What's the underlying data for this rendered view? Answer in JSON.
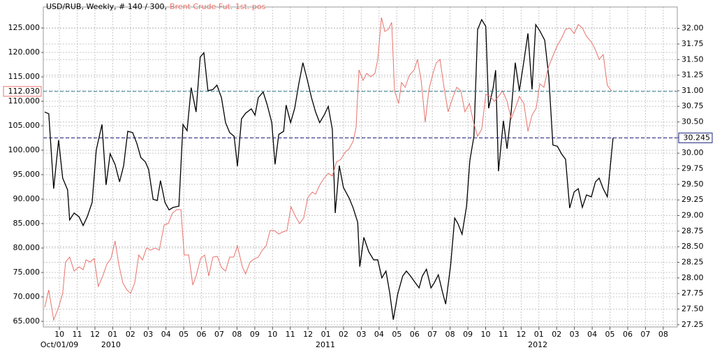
{
  "chart_data": {
    "type": "line",
    "subtitle": ", Weekly, # 140 / 300,",
    "xlim": [
      -0.34,
      154.6
    ],
    "xticks": [
      {
        "value": 3.6,
        "label": "10"
      },
      {
        "value": 7.94,
        "label": "11"
      },
      {
        "value": 12.28,
        "label": "12"
      },
      {
        "value": 16.62,
        "label": "01"
      },
      {
        "value": 20.96,
        "label": "02"
      },
      {
        "value": 25.3,
        "label": "03"
      },
      {
        "value": 29.64,
        "label": "04"
      },
      {
        "value": 33.98,
        "label": "05"
      },
      {
        "value": 38.32,
        "label": "06"
      },
      {
        "value": 42.66,
        "label": "07"
      },
      {
        "value": 47.0,
        "label": "08"
      },
      {
        "value": 51.34,
        "label": "09"
      },
      {
        "value": 55.68,
        "label": "10"
      },
      {
        "value": 60.02,
        "label": "11"
      },
      {
        "value": 64.36,
        "label": "12"
      },
      {
        "value": 68.7,
        "label": "01"
      },
      {
        "value": 73.04,
        "label": "02"
      },
      {
        "value": 77.38,
        "label": "03"
      },
      {
        "value": 81.72,
        "label": "04"
      },
      {
        "value": 86.06,
        "label": "05"
      },
      {
        "value": 90.4,
        "label": "06"
      },
      {
        "value": 94.74,
        "label": "07"
      },
      {
        "value": 99.08,
        "label": "08"
      },
      {
        "value": 103.42,
        "label": "09"
      },
      {
        "value": 107.76,
        "label": "10"
      },
      {
        "value": 112.1,
        "label": "11"
      },
      {
        "value": 116.44,
        "label": "12"
      },
      {
        "value": 120.78,
        "label": "01"
      },
      {
        "value": 125.12,
        "label": "02"
      },
      {
        "value": 129.46,
        "label": "03"
      },
      {
        "value": 133.8,
        "label": "04"
      },
      {
        "value": 138.14,
        "label": "05"
      },
      {
        "value": 142.48,
        "label": "06"
      },
      {
        "value": 146.82,
        "label": "07"
      },
      {
        "value": 151.16,
        "label": "08"
      }
    ],
    "xticks_secondary": [
      {
        "value": 3.6,
        "label": "Oct/01/09"
      },
      {
        "value": 16.2,
        "label": "2010"
      },
      {
        "value": 68.6,
        "label": "2011"
      },
      {
        "value": 120.5,
        "label": "2012"
      }
    ],
    "ylim": [
      63.86,
      129.29
    ],
    "yticks": [
      {
        "value": 65,
        "label": "65.000"
      },
      {
        "value": 70,
        "label": "70.000"
      },
      {
        "value": 75,
        "label": "75.000"
      },
      {
        "value": 80,
        "label": "80.000"
      },
      {
        "value": 85,
        "label": "85.000"
      },
      {
        "value": 90,
        "label": "90.000"
      },
      {
        "value": 95,
        "label": "95.000"
      },
      {
        "value": 100,
        "label": "100.000"
      },
      {
        "value": 105,
        "label": "105.000"
      },
      {
        "value": 110,
        "label": "110.000"
      },
      {
        "value": 115,
        "label": "115.000"
      },
      {
        "value": 120,
        "label": "120.000"
      },
      {
        "value": 125,
        "label": "125.000"
      }
    ],
    "y2lim": [
      27.214,
      32.343
    ],
    "y2ticks": [
      27.25,
      {
        "value": 27.5,
        "label": "27.50"
      },
      27.75,
      {
        "value": 28,
        "label": "28.00"
      },
      28.25,
      {
        "value": 28.5,
        "label": "28.50"
      },
      28.75,
      {
        "value": 29,
        "label": "29.00"
      },
      29.25,
      {
        "value": 29.5,
        "label": "29.50"
      },
      29.75,
      {
        "value": 30,
        "label": "30.00"
      },
      30.25,
      {
        "value": 30.5,
        "label": "30.50"
      },
      30.75,
      {
        "value": 31,
        "label": "31.00"
      },
      31.25,
      {
        "value": 31.5,
        "label": "31.50"
      },
      31.75,
      {
        "value": 32,
        "label": "32.00"
      }
    ],
    "grid": true,
    "markers": [
      {
        "value": 112.03,
        "label": "112.030",
        "axis": "y",
        "color": "#2f7f8f"
      },
      {
        "value": 30.245,
        "label": "30.245",
        "axis": "y2",
        "color": "#1a237e"
      }
    ],
    "series": [
      {
        "name": "USD/RUB",
        "color": "#000000",
        "axis": "y2",
        "x": [
          0,
          1.0,
          2.2,
          3.4,
          4.4,
          5.6,
          6.1,
          7.2,
          8.4,
          9.4,
          10.4,
          11.6,
          12.6,
          14.0,
          15.0,
          16.0,
          17.2,
          18.3,
          19.3,
          20.3,
          21.5,
          22.5,
          23.5,
          24.6,
          25.4,
          26.5,
          27.5,
          28.3,
          29.4,
          30.4,
          31.4,
          32.8,
          33.8,
          34.8,
          35.8,
          37.0,
          38.0,
          38.9,
          39.9,
          41.1,
          42.1,
          43.2,
          44.2,
          45.2,
          46.3,
          47.1,
          48.1,
          49.1,
          50.5,
          51.4,
          52.2,
          53.4,
          54.4,
          55.5,
          56.3,
          57.2,
          58.4,
          59.0,
          60.1,
          61.1,
          62.1,
          63.1,
          64.2,
          65.2,
          66.2,
          67.2,
          68.3,
          69.3,
          70.3,
          71.0,
          72.0,
          73.0,
          74.4,
          75.4,
          76.5,
          77.0,
          78.0,
          79.2,
          80.4,
          81.4,
          82.4,
          83.4,
          84.3,
          85.2,
          86.3,
          87.5,
          88.4,
          89.4,
          90.6,
          91.5,
          92.3,
          93.3,
          94.4,
          95.2,
          96.2,
          97.3,
          98.0,
          99.2,
          100.2,
          101.0,
          102.0,
          103.1,
          103.9,
          104.9,
          105.8,
          106.8,
          107.8,
          108.5,
          109.6,
          110.2,
          110.9,
          112.1,
          113.0,
          114.0,
          115.0,
          116.0,
          117.1,
          118.1,
          119.1,
          120.0,
          121.0,
          122.2,
          123.2,
          124.2,
          125.3,
          126.3,
          127.3,
          128.3,
          129.4,
          130.4,
          131.4,
          132.4,
          133.6,
          134.6,
          135.5,
          136.5,
          137.5,
          138.9
        ],
        "values": [
          30.66,
          30.63,
          29.43,
          30.21,
          29.6,
          29.41,
          28.93,
          29.04,
          28.98,
          28.84,
          28.98,
          29.21,
          30.05,
          30.46,
          29.49,
          29.99,
          29.82,
          29.54,
          29.8,
          30.35,
          30.33,
          30.16,
          29.93,
          29.86,
          29.74,
          29.26,
          29.24,
          29.56,
          29.21,
          29.09,
          29.13,
          29.15,
          30.46,
          30.36,
          31.05,
          30.66,
          31.54,
          31.61,
          31.0,
          31.02,
          31.09,
          30.89,
          30.49,
          30.33,
          30.27,
          29.79,
          30.55,
          30.64,
          30.71,
          30.61,
          30.89,
          30.98,
          30.77,
          30.49,
          29.82,
          30.3,
          30.35,
          30.77,
          30.49,
          30.72,
          31.11,
          31.45,
          31.17,
          30.89,
          30.66,
          30.49,
          30.61,
          30.75,
          30.38,
          29.04,
          29.8,
          29.45,
          29.28,
          29.12,
          28.89,
          28.18,
          28.65,
          28.42,
          28.29,
          28.29,
          28.0,
          28.11,
          27.77,
          27.33,
          27.75,
          28.03,
          28.11,
          28.03,
          27.92,
          27.84,
          28.03,
          28.14,
          27.84,
          27.92,
          28.05,
          27.75,
          27.58,
          28.2,
          28.96,
          28.87,
          28.7,
          29.15,
          29.88,
          30.27,
          31.98,
          32.14,
          32.03,
          30.72,
          31.05,
          31.33,
          29.71,
          30.52,
          30.07,
          30.66,
          31.45,
          31.0,
          31.47,
          31.92,
          31.02,
          32.06,
          31.96,
          31.81,
          31.22,
          30.13,
          30.11,
          29.99,
          29.9,
          29.12,
          29.38,
          29.43,
          29.13,
          29.33,
          29.3,
          29.54,
          29.6,
          29.43,
          29.3,
          30.245
        ]
      },
      {
        "name": "Brent Crude Fut. 1st. pos",
        "color": "#e8736c",
        "axis": "y",
        "x": [
          0,
          1.0,
          2.2,
          3.4,
          4.4,
          5.1,
          6.1,
          7.2,
          8.4,
          9.4,
          10.1,
          11.1,
          12.1,
          13.1,
          14.2,
          15.2,
          16.2,
          17.2,
          18.1,
          19.1,
          20.1,
          21.0,
          22.0,
          23.0,
          23.9,
          24.9,
          25.9,
          27.0,
          28.0,
          29.2,
          30.2,
          31.2,
          32.3,
          33.3,
          34.1,
          35.2,
          36.2,
          37.0,
          38.1,
          39.1,
          40.1,
          41.1,
          42.2,
          43.2,
          44.2,
          45.2,
          46.2,
          47.1,
          48.3,
          49.1,
          50.2,
          51.4,
          52.2,
          53.2,
          54.1,
          55.1,
          56.1,
          57.2,
          58.2,
          59.2,
          60.2,
          61.3,
          62.3,
          63.3,
          64.3,
          65.4,
          66.2,
          67.2,
          68.3,
          69.3,
          70.3,
          71.3,
          72.4,
          73.4,
          74.4,
          75.4,
          76.1,
          76.8,
          77.8,
          78.7,
          79.7,
          80.7,
          81.4,
          82.3,
          83.1,
          84.0,
          84.8,
          85.5,
          86.5,
          87.2,
          88.1,
          89.1,
          90.3,
          91.1,
          92.0,
          93.0,
          93.9,
          94.9,
          95.7,
          96.6,
          97.6,
          98.6,
          99.7,
          100.7,
          101.7,
          102.7,
          103.8,
          104.8,
          105.8,
          106.8,
          107.8,
          108.9,
          109.9,
          110.9,
          111.9,
          113.0,
          114.0,
          115.0,
          116.0,
          117.1,
          118.1,
          119.1,
          120.1,
          121.0,
          122.0,
          123.0,
          124.2,
          125.3,
          126.3,
          127.3,
          128.3,
          129.4,
          130.4,
          131.4,
          132.4,
          133.6,
          134.5,
          135.5,
          136.5,
          137.5,
          138.6
        ],
        "values": [
          67.86,
          71.43,
          65.29,
          67.86,
          70.71,
          77.14,
          78.14,
          75.29,
          76.14,
          75.57,
          77.57,
          77.14,
          77.86,
          72.14,
          74.29,
          76.71,
          77.86,
          81.43,
          76.71,
          72.86,
          71.43,
          70.71,
          72.86,
          78.57,
          77.57,
          80.0,
          79.57,
          80.0,
          79.57,
          84.71,
          85.0,
          87.14,
          87.86,
          87.86,
          78.57,
          78.57,
          72.43,
          74.29,
          77.86,
          78.57,
          74.29,
          78.14,
          78.29,
          76.0,
          75.29,
          78.14,
          78.14,
          80.43,
          76.14,
          74.71,
          77.14,
          77.86,
          78.14,
          79.57,
          80.43,
          83.57,
          83.57,
          82.86,
          83.29,
          83.57,
          88.43,
          86.43,
          85.0,
          86.14,
          90.29,
          91.43,
          91.0,
          92.86,
          94.29,
          95.29,
          94.71,
          97.57,
          98.14,
          99.57,
          100.29,
          101.86,
          104.71,
          116.43,
          114.29,
          115.71,
          115.0,
          115.71,
          118.57,
          127.14,
          124.29,
          124.71,
          126.14,
          112.14,
          109.57,
          113.86,
          112.86,
          115.29,
          116.43,
          118.57,
          114.29,
          105.71,
          112.43,
          115.71,
          117.86,
          118.57,
          112.86,
          107.86,
          110.71,
          112.86,
          112.14,
          107.86,
          109.57,
          105.71,
          102.86,
          104.29,
          111.43,
          111.0,
          110.0,
          111.0,
          112.14,
          110.0,
          106.43,
          108.57,
          111.0,
          109.57,
          103.86,
          107.14,
          108.57,
          113.57,
          112.86,
          116.71,
          119.29,
          121.43,
          122.86,
          124.71,
          125.0,
          123.86,
          125.71,
          125.0,
          123.29,
          122.14,
          120.71,
          118.57,
          119.57,
          113.29,
          112.03
        ]
      }
    ]
  }
}
